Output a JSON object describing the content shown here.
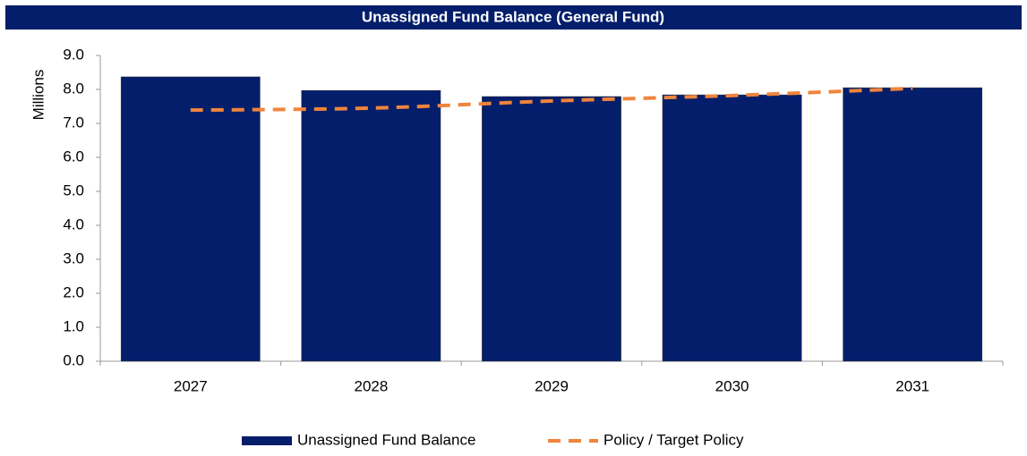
{
  "chart_data": {
    "type": "bar",
    "title": "Unassigned Fund Balance (General Fund)",
    "y_label": "Millions",
    "categories": [
      "2027",
      "2028",
      "2029",
      "2030",
      "2031"
    ],
    "series": [
      {
        "name": "Unassigned Fund Balance",
        "type": "bar",
        "color": "#041e6b",
        "values": [
          8.37,
          7.97,
          7.79,
          7.84,
          8.05
        ]
      },
      {
        "name": "Policy / Target Policy",
        "type": "line",
        "color": "#f0843c",
        "dashed": true,
        "values": [
          7.39,
          7.45,
          7.66,
          7.82,
          8.03
        ]
      }
    ],
    "ylim": [
      0,
      9
    ],
    "yticks": [
      {
        "value": 0,
        "label": "0.0"
      },
      {
        "value": 1,
        "label": "1.0"
      },
      {
        "value": 2,
        "label": "2.0"
      },
      {
        "value": 3,
        "label": "3.0"
      },
      {
        "value": 4,
        "label": "4.0"
      },
      {
        "value": 5,
        "label": "5.0"
      },
      {
        "value": 6,
        "label": "6.0"
      },
      {
        "value": 7,
        "label": "7.0"
      },
      {
        "value": 8,
        "label": "8.0"
      },
      {
        "value": 9,
        "label": "9.0"
      }
    ],
    "grid": false,
    "legend": "bottom"
  }
}
